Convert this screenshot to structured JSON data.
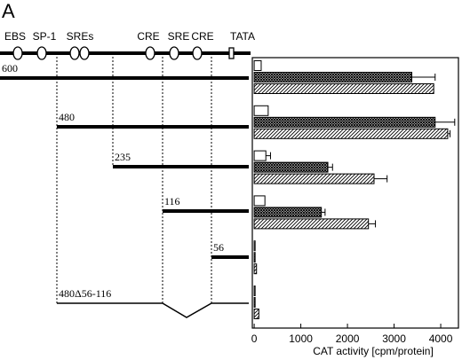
{
  "chart_data": {
    "type": "hbar",
    "panel_label": "A",
    "promoter_elements": [
      "EBS",
      "SP-1",
      "SREs",
      "CRE",
      "SRE",
      "CRE",
      "TATA"
    ],
    "categories": [
      "600",
      "480",
      "235",
      "116",
      "56",
      "480Δ56-116"
    ],
    "series": [
      {
        "fill": "white",
        "values": [
          150,
          300,
          250,
          230,
          20,
          20
        ],
        "errors": [
          0,
          0,
          100,
          0,
          0,
          0
        ]
      },
      {
        "fill": "crosshatch",
        "values": [
          3380,
          3880,
          1580,
          1440,
          20,
          20
        ],
        "errors": [
          500,
          420,
          100,
          80,
          0,
          0
        ]
      },
      {
        "fill": "diagonal-hatch",
        "values": [
          3850,
          4150,
          2570,
          2450,
          50,
          100
        ],
        "errors": [
          0,
          50,
          280,
          150,
          0,
          0
        ]
      }
    ],
    "xlim": [
      -40,
      4380
    ],
    "xticks": [
      0,
      1000,
      2000,
      3000,
      4000
    ],
    "xlabel": "CAT activity [cpm/protein]"
  }
}
